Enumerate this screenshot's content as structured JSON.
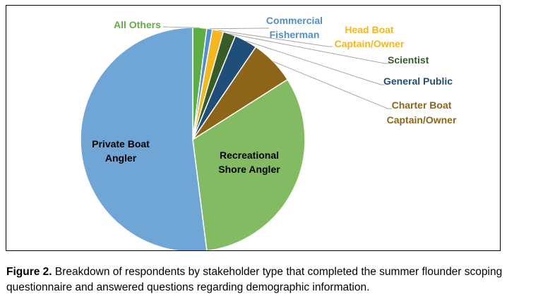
{
  "chart_data": {
    "type": "pie",
    "title": "",
    "slices": [
      {
        "label": "All Others",
        "value": 2.0,
        "color": "#5fae45"
      },
      {
        "label": "Commercial Fisherman",
        "value": 0.8,
        "color": "#4f8fd0"
      },
      {
        "label": "Head Boat Captain/Owner",
        "value": 1.6,
        "color": "#f6b61d"
      },
      {
        "label": "Scientist",
        "value": 1.8,
        "color": "#385c27"
      },
      {
        "label": "General Public",
        "value": 3.3,
        "color": "#1f4e79"
      },
      {
        "label": "Charter Boat Captain/Owner",
        "value": 6.5,
        "color": "#8c6518"
      },
      {
        "label": "Recreational Shore Angler",
        "value": 32.0,
        "color": "#82bb62"
      },
      {
        "label": "Private Boat Angler",
        "value": 52.0,
        "color": "#6fa6d6"
      }
    ],
    "labels": {
      "all_others": "All Others",
      "commercial_line1": "Commercial",
      "commercial_line2": "Fisherman",
      "head_boat_line1": "Head Boat",
      "head_boat_line2": "Captain/Owner",
      "scientist": "Scientist",
      "general_public": "General Public",
      "charter_line1": "Charter Boat",
      "charter_line2": "Captain/Owner",
      "shore_line1": "Recreational",
      "shore_line2": "Shore Angler",
      "private_line1": "Private Boat",
      "private_line2": "Angler"
    },
    "label_colors": {
      "all_others": "#5fae45",
      "commercial": "#4f8fd0",
      "head_boat": "#f6b61d",
      "scientist": "#385c27",
      "general_public": "#1f4e79",
      "charter": "#8c6518",
      "inside": "#000000"
    }
  },
  "caption": {
    "prefix": "Figure 2.",
    "text": " Breakdown of respondents by stakeholder type that completed the summer flounder scoping questionnaire and answered questions regarding demographic information."
  }
}
